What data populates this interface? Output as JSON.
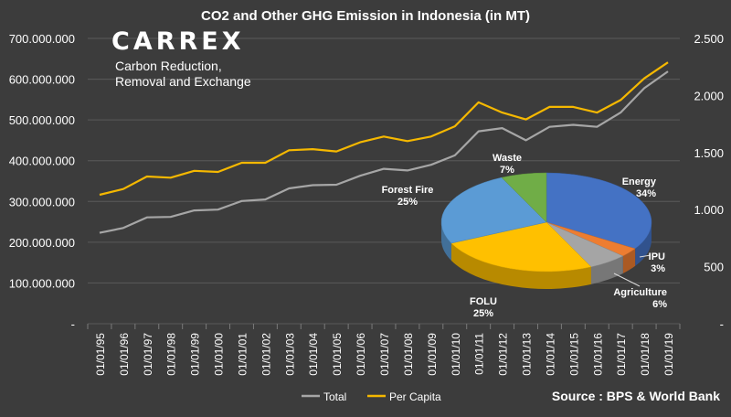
{
  "logo": {
    "name": "CARREX",
    "tagline_line1": "Carbon Reduction,",
    "tagline_line2": "Removal and Exchange"
  },
  "source": "Source : BPS & World Bank",
  "chart_data": [
    {
      "type": "line",
      "title": "CO2 and Other GHG Emission in Indonesia (in MT)",
      "x": [
        "01/01/95",
        "01/01/96",
        "01/01/97",
        "01/01/98",
        "01/01/99",
        "01/01/00",
        "01/01/01",
        "01/01/02",
        "01/01/03",
        "01/01/04",
        "01/01/05",
        "01/01/06",
        "01/01/07",
        "01/01/08",
        "01/01/09",
        "01/01/10",
        "01/01/11",
        "01/01/12",
        "01/01/13",
        "01/01/14",
        "01/01/15",
        "01/01/16",
        "01/01/17",
        "01/01/18",
        "01/01/19"
      ],
      "y_left": {
        "ylim": [
          0,
          700000000
        ],
        "ticks": [
          0,
          100000000,
          200000000,
          300000000,
          400000000,
          500000000,
          600000000,
          700000000
        ],
        "tick_labels": [
          "-",
          "100.000.000",
          "200.000.000",
          "300.000.000",
          "400.000.000",
          "500.000.000",
          "600.000.000",
          "700.000.000"
        ]
      },
      "y_right": {
        "ylim": [
          0,
          2500
        ],
        "ticks": [
          0,
          500,
          1000,
          1500,
          2000,
          2500
        ],
        "tick_labels": [
          "-",
          "500",
          "1.000",
          "1.500",
          "2.000",
          "2.500"
        ]
      },
      "series": [
        {
          "name": "Total",
          "axis": "left",
          "color": "#a6a6a6",
          "values": [
            223000000,
            235000000,
            261000000,
            262000000,
            278000000,
            280000000,
            301000000,
            305000000,
            332000000,
            340000000,
            341000000,
            363000000,
            380000000,
            376000000,
            390000000,
            413000000,
            472000000,
            480000000,
            450000000,
            483000000,
            488000000,
            483000000,
            518000000,
            578000000,
            619000000
          ]
        },
        {
          "name": "Per Capita",
          "axis": "right",
          "color": "#f5b800",
          "values": [
            1130,
            1180,
            1290,
            1280,
            1340,
            1330,
            1410,
            1410,
            1520,
            1530,
            1510,
            1590,
            1640,
            1600,
            1640,
            1730,
            1940,
            1850,
            1790,
            1900,
            1900,
            1850,
            1960,
            2150,
            2290
          ]
        }
      ],
      "legend": "bottom-left",
      "grid": true
    },
    {
      "type": "pie",
      "slices": [
        {
          "label": "Energy",
          "value": 34,
          "value_label": "34%",
          "color": "#4472c4"
        },
        {
          "label": "IPU",
          "value": 3,
          "value_label": "3%",
          "color": "#ed7d31"
        },
        {
          "label": "Agriculture",
          "value": 6,
          "value_label": "6%",
          "color": "#a5a5a5"
        },
        {
          "label": "FOLU",
          "value": 25,
          "value_label": "25%",
          "color": "#ffc000"
        },
        {
          "label": "Forest Fire",
          "value": 25,
          "value_label": "25%",
          "color": "#5b9bd5"
        },
        {
          "label": "Waste",
          "value": 7,
          "value_label": "7%",
          "color": "#70ad47"
        }
      ]
    }
  ]
}
